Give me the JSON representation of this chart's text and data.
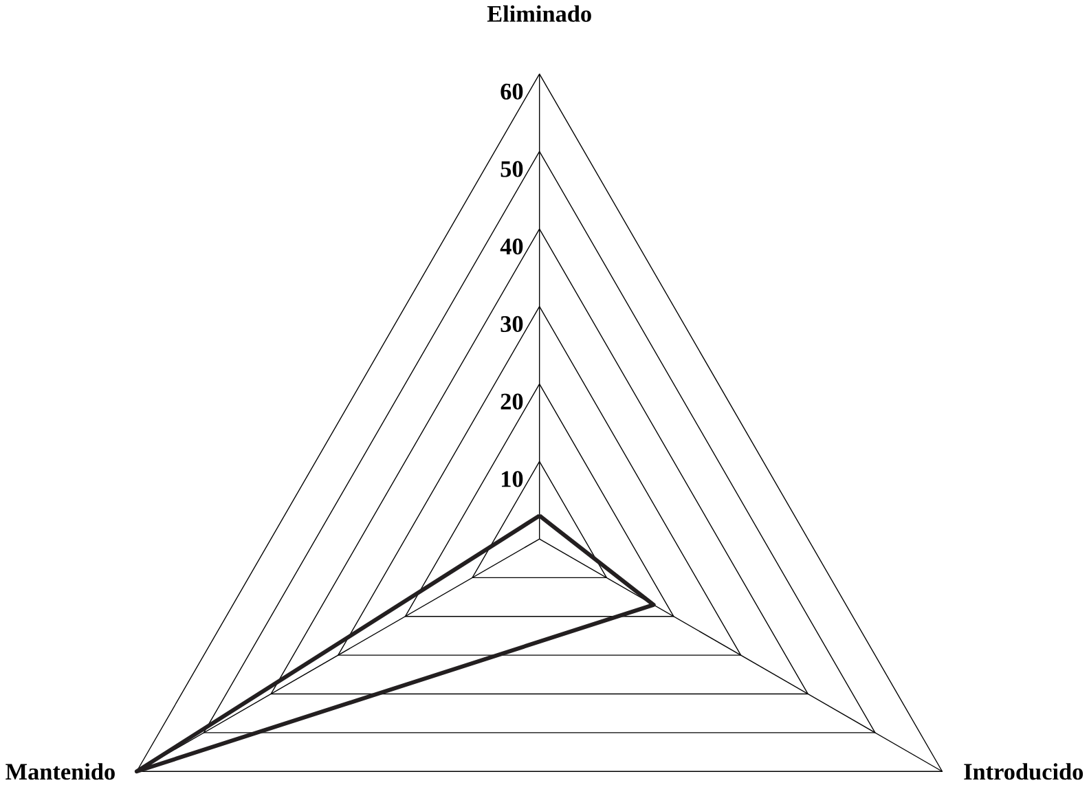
{
  "chart_data": {
    "type": "radar",
    "categories": [
      "Eliminado",
      "Introducido",
      "Mantenido"
    ],
    "series": [
      {
        "color": "#231f20",
        "values": [
          3,
          17,
          60
        ]
      }
    ],
    "ylim": [
      0,
      60
    ],
    "yticks": [
      10,
      20,
      30,
      40,
      50,
      60
    ],
    "grid": true
  }
}
